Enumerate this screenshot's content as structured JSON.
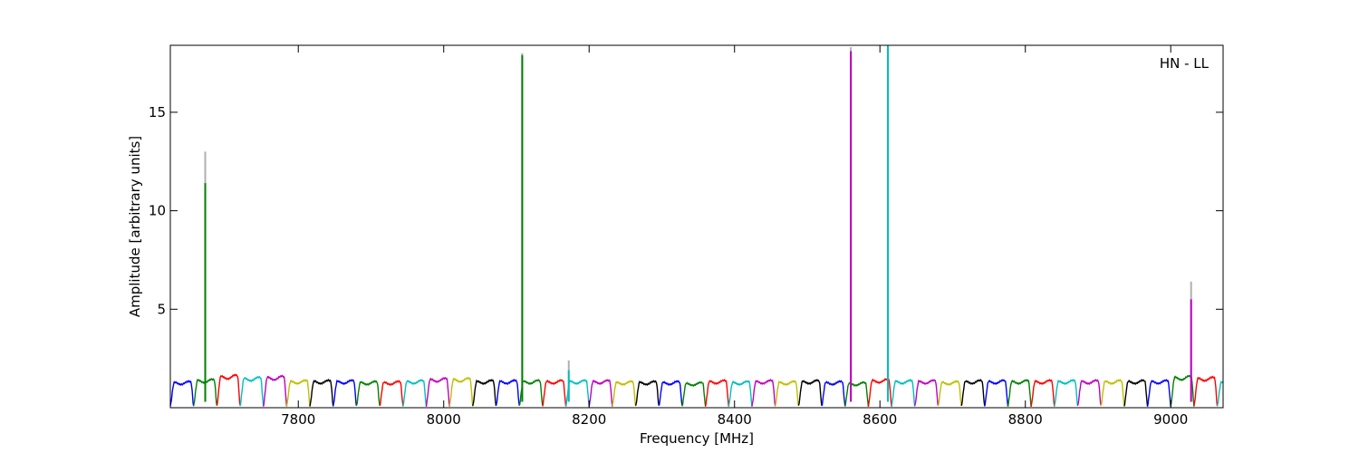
{
  "chart_data": {
    "type": "line",
    "annotation": "HN - LL",
    "xlabel": "Frequency [MHz]",
    "ylabel": "Amplitude [arbitrary units]",
    "xlim": [
      7624,
      9072
    ],
    "ylim": [
      0,
      18.4
    ],
    "xticks": [
      7800,
      8000,
      8200,
      8400,
      8600,
      8800,
      9000
    ],
    "yticks": [
      5,
      10,
      15
    ],
    "grid": false,
    "band_width_mhz": 32,
    "band_colors": [
      "#0000ff",
      "#008000",
      "#ff0000",
      "#00bfbf",
      "#bf00bf",
      "#bfbf00",
      "#000000"
    ],
    "band_peak_levels": [
      1.25,
      1.35,
      1.55,
      1.45,
      1.5,
      1.3,
      1.3,
      1.3,
      1.25,
      1.25,
      1.3,
      1.4,
      1.4,
      1.3,
      1.3,
      1.3,
      1.3,
      1.3,
      1.3,
      1.25,
      1.25,
      1.25,
      1.2,
      1.3,
      1.25,
      1.3,
      1.25,
      1.3,
      1.25,
      1.2,
      1.35,
      1.3,
      1.3,
      1.25,
      1.3,
      1.3,
      1.3,
      1.3,
      1.3,
      1.3,
      1.3,
      1.3,
      1.3,
      1.5,
      1.45
    ],
    "spikes": [
      {
        "x": 7672,
        "y": 11.4,
        "y_unflagged": 13.0,
        "color": "#008000"
      },
      {
        "x": 8108,
        "y": 17.9,
        "y_unflagged": 18.0,
        "color": "#008000"
      },
      {
        "x": 8172,
        "y": 1.9,
        "y_unflagged": 2.4,
        "color": "#00bfbf"
      },
      {
        "x": 8560,
        "y": 18.1,
        "y_unflagged": 18.3,
        "color": "#bf00bf"
      },
      {
        "x": 8611,
        "y": 18.4,
        "y_unflagged": 18.4,
        "color": "#00bfbf"
      },
      {
        "x": 9028,
        "y": 5.5,
        "y_unflagged": 6.4,
        "color": "#bf00bf"
      }
    ]
  }
}
